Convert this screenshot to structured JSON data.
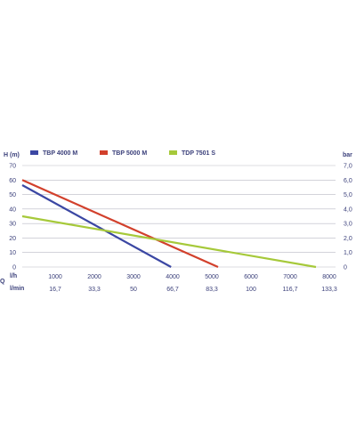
{
  "chart_data": {
    "type": "line",
    "left_axis_label": "H (m)",
    "right_axis_label": "bar",
    "left_ticks": [
      "0",
      "10",
      "20",
      "30",
      "40",
      "50",
      "60",
      "70"
    ],
    "right_ticks": [
      "0",
      "1,0",
      "2,0",
      "3,0",
      "4,0",
      "5,0",
      "6,0",
      "7,0"
    ],
    "ylim": [
      0,
      70
    ],
    "right_ylim": [
      0,
      7
    ],
    "xlim": [
      0,
      8000
    ],
    "q_label": "Q",
    "x_row_lh": {
      "label": "l/h",
      "ticks": [
        "1000",
        "2000",
        "3000",
        "4000",
        "5000",
        "6000",
        "7000",
        "8000"
      ]
    },
    "x_row_lmin": {
      "label": "l/min",
      "ticks": [
        "16,7",
        "33,3",
        "50",
        "66,7",
        "83,3",
        "100",
        "116,7",
        "133,3"
      ]
    },
    "grid": "horizontal",
    "legend_position": "top",
    "series": [
      {
        "name": "TBP 4000 M",
        "color": "#3b47a3",
        "x": [
          0,
          3800
        ],
        "y": [
          56.5,
          0
        ]
      },
      {
        "name": "TBP 5000 M",
        "color": "#d2402c",
        "x": [
          0,
          5000
        ],
        "y": [
          60,
          0
        ]
      },
      {
        "name": "TDP 7501 S",
        "color": "#a6c93a",
        "x": [
          0,
          7500
        ],
        "y": [
          35,
          0
        ]
      }
    ]
  }
}
